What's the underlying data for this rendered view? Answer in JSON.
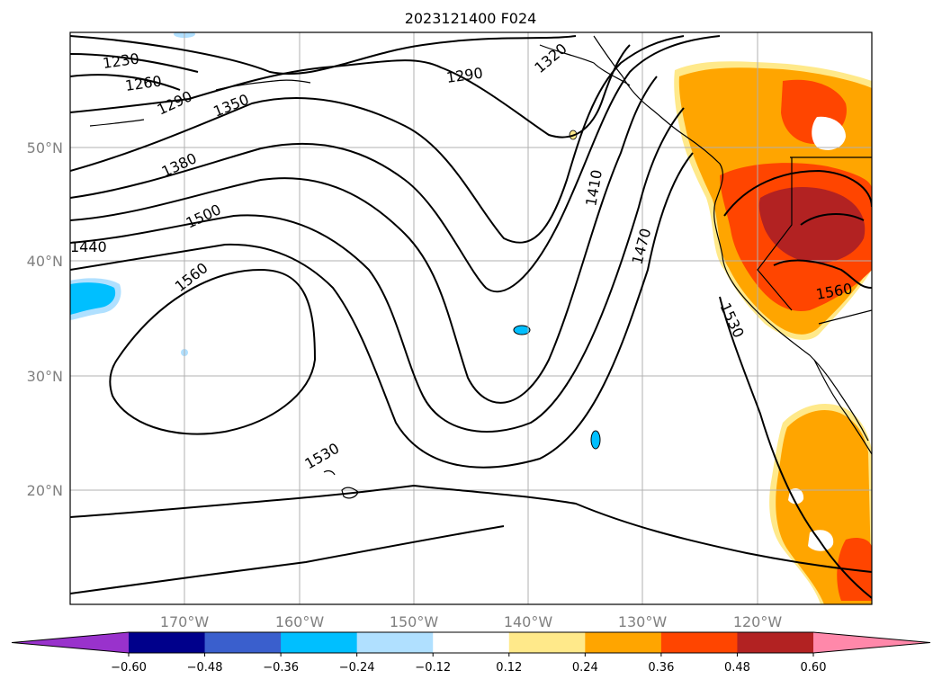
{
  "title": "2023121400 F024",
  "map": {
    "lat_labels": [
      "50°N",
      "40°N",
      "30°N",
      "20°N"
    ],
    "lon_labels": [
      "170°W",
      "160°W",
      "150°W",
      "140°W",
      "130°W",
      "120°W"
    ],
    "contour_labels": [
      "1230",
      "1260",
      "1290",
      "1320",
      "1350",
      "1380",
      "1410",
      "1440",
      "1470",
      "1500",
      "1530",
      "1560"
    ],
    "colors": {
      "land_outline": "#000000",
      "gridline": "#b0b0b0",
      "contour": "#000000",
      "light_yellow": "#ffe98a",
      "orange": "#ffa500",
      "orange_red": "#ff4500",
      "dark_red": "#b22222",
      "light_blue": "#b0e0ff",
      "deep_sky_blue": "#00bfff"
    }
  },
  "colorbar": {
    "ticks": [
      "−0.60",
      "−0.48",
      "−0.36",
      "−0.24",
      "−0.12",
      "0.12",
      "0.24",
      "0.36",
      "0.48",
      "0.60"
    ],
    "colors": [
      "#9932cc",
      "#00008b",
      "#3a5fcd",
      "#00bfff",
      "#b0e0ff",
      "#ffffff",
      "#ffe98a",
      "#ffa500",
      "#ff4500",
      "#b22222",
      "#ff88aa"
    ]
  }
}
